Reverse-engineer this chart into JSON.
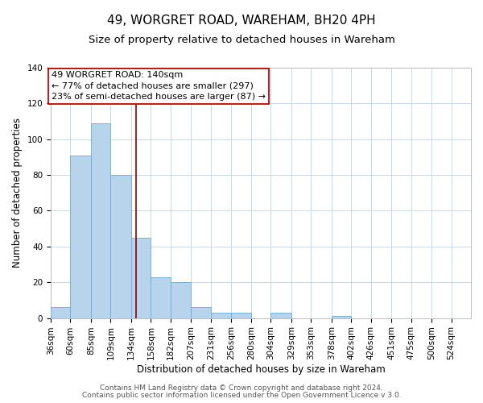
{
  "title": "49, WORGRET ROAD, WAREHAM, BH20 4PH",
  "subtitle": "Size of property relative to detached houses in Wareham",
  "xlabel": "Distribution of detached houses by size in Wareham",
  "ylabel": "Number of detached properties",
  "bar_values": [
    6,
    91,
    109,
    80,
    45,
    23,
    20,
    6,
    3,
    3,
    0,
    3,
    0,
    0,
    1,
    0,
    0,
    0,
    0,
    0
  ],
  "bin_labels": [
    "36sqm",
    "60sqm",
    "85sqm",
    "109sqm",
    "134sqm",
    "158sqm",
    "182sqm",
    "207sqm",
    "231sqm",
    "256sqm",
    "280sqm",
    "304sqm",
    "329sqm",
    "353sqm",
    "378sqm",
    "402sqm",
    "426sqm",
    "451sqm",
    "475sqm",
    "500sqm",
    "524sqm"
  ],
  "bar_color": "#b8d4ec",
  "bar_edge_color": "#6aaed6",
  "property_line_x": 140,
  "bin_edges": [
    36,
    60,
    85,
    109,
    134,
    158,
    182,
    207,
    231,
    256,
    280,
    304,
    329,
    353,
    378,
    402,
    426,
    451,
    475,
    500,
    524
  ],
  "annotation_text": "49 WORGRET ROAD: 140sqm\n← 77% of detached houses are smaller (297)\n23% of semi-detached houses are larger (87) →",
  "annotation_box_color": "#ffffff",
  "annotation_box_edge_color": "#cc0000",
  "vline_color": "#8b0000",
  "ylim": [
    0,
    140
  ],
  "yticks": [
    0,
    20,
    40,
    60,
    80,
    100,
    120,
    140
  ],
  "footer1": "Contains HM Land Registry data © Crown copyright and database right 2024.",
  "footer2": "Contains public sector information licensed under the Open Government Licence v 3.0.",
  "background_color": "#ffffff",
  "grid_color": "#c8d8ec",
  "title_fontsize": 11,
  "subtitle_fontsize": 9.5,
  "axis_label_fontsize": 8.5,
  "tick_fontsize": 7.5,
  "annotation_fontsize": 8,
  "footer_fontsize": 6.5
}
